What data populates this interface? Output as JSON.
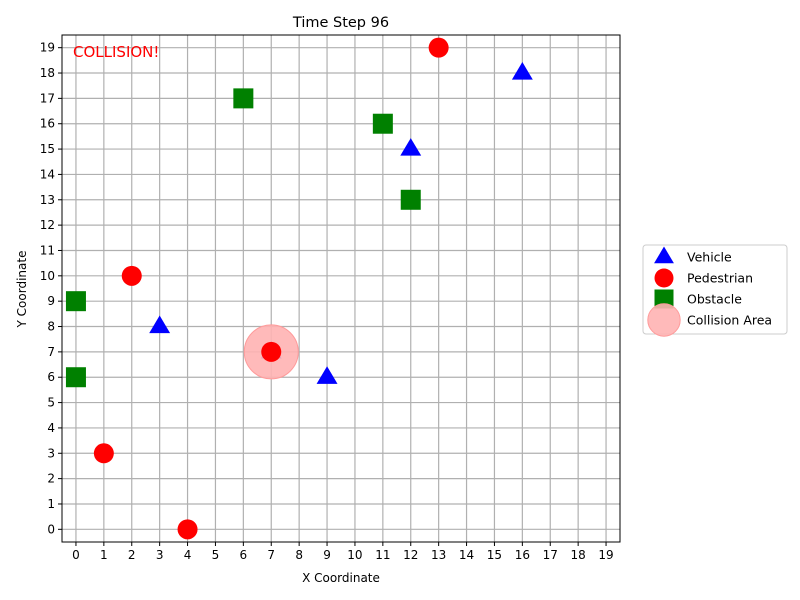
{
  "chart_data": {
    "type": "scatter",
    "title": "Time Step 96",
    "xlabel": "X Coordinate",
    "ylabel": "Y Coordinate",
    "xlim": [
      -0.5,
      19.5
    ],
    "ylim": [
      -0.5,
      19.5
    ],
    "xticks": [
      0,
      1,
      2,
      3,
      4,
      5,
      6,
      7,
      8,
      9,
      10,
      11,
      12,
      13,
      14,
      15,
      16,
      17,
      18,
      19
    ],
    "yticks": [
      0,
      1,
      2,
      3,
      4,
      5,
      6,
      7,
      8,
      9,
      10,
      11,
      12,
      13,
      14,
      15,
      16,
      17,
      18,
      19
    ],
    "grid": true,
    "legend_position": "outside-right",
    "annotation": "COLLISION!",
    "annotation_color": "#ff0000",
    "series": [
      {
        "name": "Vehicle",
        "marker": "triangle",
        "color": "#0000ff",
        "points": [
          [
            16,
            18
          ],
          [
            12,
            15
          ],
          [
            3,
            8
          ],
          [
            7,
            7
          ],
          [
            9,
            6
          ]
        ]
      },
      {
        "name": "Pedestrian",
        "marker": "circle",
        "color": "#ff0000",
        "points": [
          [
            13,
            19
          ],
          [
            2,
            10
          ],
          [
            7,
            7
          ],
          [
            1,
            3
          ],
          [
            4,
            0
          ]
        ]
      },
      {
        "name": "Obstacle",
        "marker": "square",
        "color": "#008000",
        "points": [
          [
            6,
            17
          ],
          [
            11,
            16
          ],
          [
            12,
            13
          ],
          [
            0,
            9
          ],
          [
            0,
            6
          ]
        ]
      },
      {
        "name": "Collision Area",
        "marker": "large-circle",
        "color": "#ffb3b3",
        "points": [
          [
            7,
            7
          ]
        ]
      }
    ]
  }
}
